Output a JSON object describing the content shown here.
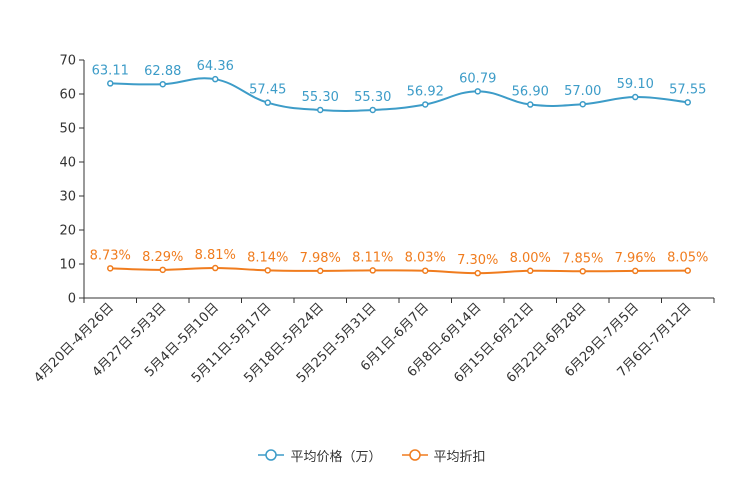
{
  "chart_data": {
    "type": "line",
    "title": "",
    "xlabel": "",
    "ylabel": "",
    "ylim": [
      0,
      70
    ],
    "yticks": [
      0,
      10,
      20,
      30,
      40,
      50,
      60,
      70
    ],
    "grid": false,
    "legend_position": "bottom-center",
    "categories": [
      "4月20日-4月26日",
      "4月27日-5月3日",
      "5月4日-5月10日",
      "5月11日-5月17日",
      "5月18日-5月24日",
      "5月25日-5月31日",
      "6月1日-6月7日",
      "6月8日-6月14日",
      "6月15日-6月21日",
      "6月22日-6月28日",
      "6月29日-7月5日",
      "7月6日-7月12日"
    ],
    "series": [
      {
        "name": "平均价格（万）",
        "color": "#3d9cc8",
        "values": [
          63.11,
          62.88,
          64.36,
          57.45,
          55.3,
          55.3,
          56.92,
          60.79,
          56.9,
          57.0,
          59.1,
          57.55
        ],
        "labels": [
          "63.11",
          "62.88",
          "64.36",
          "57.45",
          "55.30",
          "55.30",
          "56.92",
          "60.79",
          "56.90",
          "57.00",
          "59.10",
          "57.55"
        ]
      },
      {
        "name": "平均折扣",
        "color": "#f07c1e",
        "values": [
          8.73,
          8.29,
          8.81,
          8.14,
          7.98,
          8.11,
          8.03,
          7.3,
          8.0,
          7.85,
          7.96,
          8.05
        ],
        "labels": [
          "8.73%",
          "8.29%",
          "8.81%",
          "8.14%",
          "7.98%",
          "8.11%",
          "8.03%",
          "7.30%",
          "8.00%",
          "7.85%",
          "7.96%",
          "8.05%"
        ]
      }
    ]
  }
}
